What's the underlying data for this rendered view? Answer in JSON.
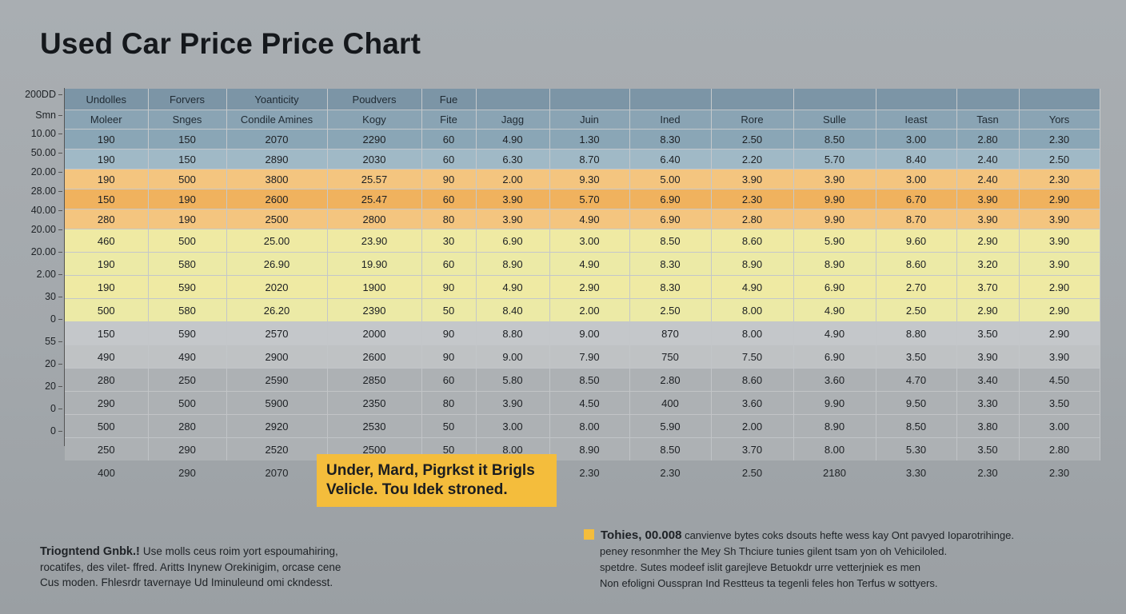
{
  "title": "Used Car Price Price Chart",
  "colors": {
    "header1": "#7c95a6",
    "header2": "#8aa4b4",
    "blue1": "#8aa6b6",
    "blue2": "#a0b9c6",
    "orange1": "#f4c57f",
    "orange2": "#f0b25e",
    "yellow1": "#efeaa3",
    "yellow2": "#eceaa6",
    "light1": "#c4c7ca",
    "light2": "#bfc2c4",
    "gray1": "#adb1b4",
    "accent": "#f4bd3c"
  },
  "y_axis_labels": [
    "200DD",
    "Smn",
    "10.00",
    "50.00",
    "20.00",
    "28.00",
    "40.00",
    "20.00",
    "20.00",
    "2.00",
    "30",
    "0",
    "55",
    "20",
    "20",
    "0",
    "0"
  ],
  "chart_data": {
    "type": "table",
    "title": "Used Car Price Price Chart",
    "header_row_1": [
      "Undolles",
      "Forvers",
      "Yoanticity",
      "Poudvers",
      "Fue",
      "",
      "",
      "",
      "",
      "",
      "",
      "",
      ""
    ],
    "header_row_2": [
      "Moleer",
      "Snges",
      "Condile Amines",
      "Kogy",
      "Fite",
      "Jagg",
      "Juin",
      "Ined",
      "Rore",
      "Sulle",
      "Ieast",
      "Tasn",
      "Yors"
    ],
    "rows": [
      {
        "band": "blue1",
        "cells": [
          "190",
          "150",
          "2070",
          "2290",
          "60",
          "4.90",
          "1.30",
          "8.30",
          "2.50",
          "8.50",
          "3.00",
          "2.80",
          "2.30"
        ]
      },
      {
        "band": "blue2",
        "cells": [
          "190",
          "150",
          "2890",
          "2030",
          "60",
          "6.30",
          "8.70",
          "6.40",
          "2.20",
          "5.70",
          "8.40",
          "2.40",
          "2.50"
        ]
      },
      {
        "band": "orange1",
        "cells": [
          "190",
          "500",
          "3800",
          "25.57",
          "90",
          "2.00",
          "9.30",
          "5.00",
          "3.90",
          "3.90",
          "3.00",
          "2.40",
          "2.30"
        ]
      },
      {
        "band": "orange2",
        "cells": [
          "150",
          "190",
          "2600",
          "25.47",
          "60",
          "3.90",
          "5.70",
          "6.90",
          "2.30",
          "9.90",
          "6.70",
          "3.90",
          "2.90"
        ]
      },
      {
        "band": "orange1",
        "cells": [
          "280",
          "190",
          "2500",
          "2800",
          "80",
          "3.90",
          "4.90",
          "6.90",
          "2.80",
          "9.90",
          "8.70",
          "3.90",
          "3.90"
        ]
      },
      {
        "band": "yellow1",
        "tall": true,
        "cells": [
          "460",
          "500",
          "25.00",
          "23.90",
          "30",
          "6.90",
          "3.00",
          "8.50",
          "8.60",
          "5.90",
          "9.60",
          "2.90",
          "3.90"
        ]
      },
      {
        "band": "yellow2",
        "tall": true,
        "cells": [
          "190",
          "580",
          "26.90",
          "19.90",
          "60",
          "8.90",
          "4.90",
          "8.30",
          "8.90",
          "8.90",
          "8.60",
          "3.20",
          "3.90"
        ]
      },
      {
        "band": "yellow1",
        "tall": true,
        "cells": [
          "190",
          "590",
          "2020",
          "1900",
          "90",
          "4.90",
          "2.90",
          "8.30",
          "4.90",
          "6.90",
          "2.70",
          "3.70",
          "2.90"
        ]
      },
      {
        "band": "yellow2",
        "tall": true,
        "cells": [
          "500",
          "580",
          "26.20",
          "2390",
          "50",
          "8.40",
          "2.00",
          "2.50",
          "8.00",
          "4.90",
          "2.50",
          "2.90",
          "2.90"
        ]
      },
      {
        "band": "light1",
        "tall": true,
        "cells": [
          "150",
          "590",
          "2570",
          "2000",
          "90",
          "8.80",
          "9.00",
          "870",
          "8.00",
          "4.90",
          "8.80",
          "3.50",
          "2.90"
        ]
      },
      {
        "band": "light2",
        "tall": true,
        "cells": [
          "490",
          "490",
          "2900",
          "2600",
          "90",
          "9.00",
          "7.90",
          "750",
          "7.50",
          "6.90",
          "3.50",
          "3.90",
          "3.90"
        ]
      },
      {
        "band": "gray1",
        "tall": true,
        "cells": [
          "280",
          "250",
          "2590",
          "2850",
          "60",
          "5.80",
          "8.50",
          "2.80",
          "8.60",
          "3.60",
          "4.70",
          "3.40",
          "4.50"
        ]
      },
      {
        "band": "gray1",
        "tall": true,
        "cells": [
          "290",
          "500",
          "5900",
          "2350",
          "80",
          "3.90",
          "4.50",
          "400",
          "3.60",
          "9.90",
          "9.50",
          "3.30",
          "3.50"
        ]
      },
      {
        "band": "gray1",
        "tall": true,
        "cells": [
          "500",
          "280",
          "2920",
          "2530",
          "50",
          "3.00",
          "8.00",
          "5.90",
          "2.00",
          "8.90",
          "8.50",
          "3.80",
          "3.00"
        ]
      },
      {
        "band": "gray1",
        "tall": true,
        "cells": [
          "250",
          "290",
          "2520",
          "2500",
          "50",
          "8.00",
          "8.90",
          "8.50",
          "3.70",
          "8.00",
          "5.30",
          "3.50",
          "2.80"
        ]
      }
    ],
    "footer_row": [
      "400",
      "290",
      "2070",
      "",
      "",
      "",
      "2.30",
      "2.30",
      "2.50",
      "2180",
      "3.30",
      "2.30",
      "2.30"
    ]
  },
  "callout": {
    "line1": "Under, Mard, Pigrkst it Brigls",
    "line2": "Velicle. Tou Idek stroned."
  },
  "notes_left": {
    "lead": "Triogntend Gnbk.! ",
    "line1": "Use molls ceus roim yort espoumahiring,",
    "line2": "rocatifes, des vilet- ffred. Aritts Inynew Orekinigim, orcase cene",
    "line3": "Cus moden. Fhlesrdr tavernaye Ud Iminuleund omi ckndesst."
  },
  "legend": {
    "lead": "Tohies, 00.008",
    "line1": " canvienve bytes coks dsouts hefte wess kay Ont pavyed Ioparotrihinge.",
    "line2": "peney resonmher the Mey Sh Thciure tunies gilent tsam yon oh Vehiciloled.",
    "line3": "spetdre. Sutes modeef islit garejleve Betuokdr urre vetterjniek es men",
    "line4": "Non efoligni Ousspran Ind Restteus ta tegenli feles hon Terfus w sottyers."
  }
}
